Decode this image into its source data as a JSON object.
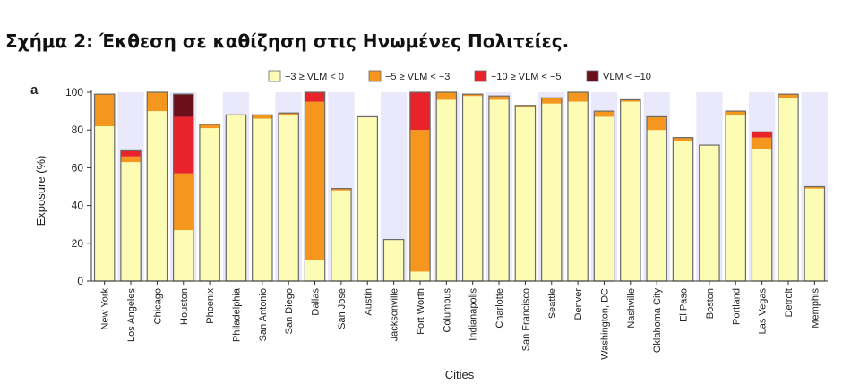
{
  "page": {
    "heading": "Σχήμα 2: Έκθεση σε καθίζηση στις Ηνωμένες Πολιτείες."
  },
  "chart_data": {
    "type": "bar",
    "stacked": true,
    "panel_label": "a",
    "xlabel": "Cities",
    "ylabel": "Exposure (%)",
    "ylim": [
      0,
      100
    ],
    "yticks": [
      0,
      20,
      40,
      60,
      80,
      100
    ],
    "legend_position": "top",
    "categories": [
      "New York",
      "Los Angeles",
      "Chicago",
      "Houston",
      "Phoenix",
      "Philadelphia",
      "San Antonio",
      "San Diego",
      "Dallas",
      "San Jose",
      "Austin",
      "Jacksonville",
      "Fort Worth",
      "Columbus",
      "Indianapolis",
      "Charlotte",
      "San Francisco",
      "Seattle",
      "Denver",
      "Washington, DC",
      "Nashville",
      "Oklahoma City",
      "El Paso",
      "Boston",
      "Portland",
      "Las Vegas",
      "Detroit",
      "Memphis"
    ],
    "series": [
      {
        "name": "−3 ≥ VLM < 0",
        "color": "#fdfcb4",
        "values": [
          82,
          63,
          90,
          27,
          81,
          88,
          86,
          88,
          11,
          48,
          87,
          22,
          5,
          96,
          98,
          96,
          92,
          94,
          95,
          87,
          95,
          80,
          74,
          72,
          88,
          70,
          97,
          49
        ]
      },
      {
        "name": "−5 ≥ VLM < −3",
        "color": "#f5961e",
        "values": [
          17,
          3,
          10,
          30,
          2,
          0,
          2,
          1,
          84,
          1,
          0,
          0,
          75,
          4,
          1,
          2,
          1,
          3,
          5,
          3,
          1,
          7,
          2,
          0,
          2,
          6,
          2,
          1
        ]
      },
      {
        "name": "−10 ≥ VLM < −5",
        "color": "#e8232a",
        "values": [
          0,
          3,
          0,
          30,
          0,
          0,
          0,
          0,
          5,
          0,
          0,
          0,
          20,
          0,
          0,
          0,
          0,
          0,
          0,
          0,
          0,
          0,
          0,
          0,
          0,
          3,
          0,
          0
        ]
      },
      {
        "name": "VLM < −10",
        "color": "#6b0f1a",
        "values": [
          0,
          0,
          0,
          12,
          0,
          0,
          0,
          0,
          0,
          0,
          0,
          0,
          0,
          0,
          0,
          0,
          0,
          0,
          0,
          0,
          0,
          0,
          0,
          0,
          0,
          0,
          0,
          0
        ]
      }
    ],
    "colors": {
      "stripe": "#e9e9fb",
      "bar_edge": "#6a6a6a",
      "axis": "#333333",
      "text": "#222222"
    }
  }
}
